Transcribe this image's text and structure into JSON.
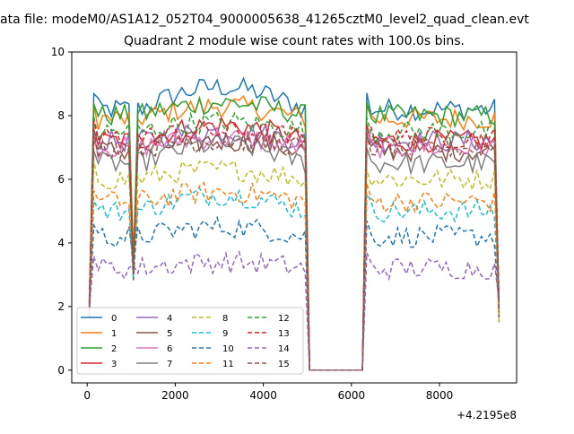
{
  "figure": {
    "suptitle": "ata file: modeM0/AS1A12_052T04_9000005638_41265cztM0_level2_quad_clean.evt",
    "offset_label": "+4.2195e8"
  },
  "chart_data": {
    "type": "line",
    "title": "Quadrant 2 module wise count rates with 100.0s bins.",
    "xlabel": "",
    "ylabel": "",
    "xlim": [
      -350,
      9750
    ],
    "ylim": [
      -0.4,
      10
    ],
    "x_ticks": [
      0,
      2000,
      4000,
      6000,
      8000
    ],
    "y_ticks": [
      0,
      2,
      4,
      6,
      8,
      10
    ],
    "grid": false,
    "legend_position": "lower-left",
    "legend_columns": 4,
    "x_offset": 421950000,
    "x_start": 50,
    "x_step": 100,
    "point_count": 94,
    "segments": [
      {
        "from_x": 50,
        "to_x": 950,
        "kind": "on"
      },
      {
        "from_x": 1150,
        "to_x": 4950,
        "kind": "on"
      },
      {
        "from_x": 5050,
        "to_x": 6250,
        "kind": "zero"
      },
      {
        "from_x": 6350,
        "to_x": 9350,
        "kind": "on"
      }
    ],
    "dip_points": [
      {
        "x": 1050
      }
    ],
    "series": [
      {
        "name": "0",
        "color": "#1f77b4",
        "dash": "solid",
        "base": 8.2,
        "trend": 0.7
      },
      {
        "name": "1",
        "color": "#ff7f0e",
        "dash": "solid",
        "base": 7.9,
        "trend": 0.4
      },
      {
        "name": "2",
        "color": "#2ca02c",
        "dash": "solid",
        "base": 8.0,
        "trend": 0.4
      },
      {
        "name": "3",
        "color": "#d62728",
        "dash": "solid",
        "base": 7.2,
        "trend": 0.5
      },
      {
        "name": "4",
        "color": "#9467bd",
        "dash": "solid",
        "base": 7.2,
        "trend": 0.3
      },
      {
        "name": "5",
        "color": "#8c564b",
        "dash": "solid",
        "base": 6.9,
        "trend": 0.3
      },
      {
        "name": "6",
        "color": "#e377c2",
        "dash": "solid",
        "base": 7.0,
        "trend": 0.3
      },
      {
        "name": "7",
        "color": "#7f7f7f",
        "dash": "solid",
        "base": 6.5,
        "trend": 0.6
      },
      {
        "name": "8",
        "color": "#bcbd22",
        "dash": "dashed",
        "base": 6.0,
        "trend": 0.3
      },
      {
        "name": "9",
        "color": "#17becf",
        "dash": "dashed",
        "base": 5.0,
        "trend": 0.5
      },
      {
        "name": "10",
        "color": "#1f77b4",
        "dash": "dashed",
        "base": 4.2,
        "trend": 0.3
      },
      {
        "name": "11",
        "color": "#ff7f0e",
        "dash": "dashed",
        "base": 5.3,
        "trend": 0.3
      },
      {
        "name": "12",
        "color": "#2ca02c",
        "dash": "dashed",
        "base": 7.5,
        "trend": 0.3
      },
      {
        "name": "13",
        "color": "#d62728",
        "dash": "dashed",
        "base": 7.3,
        "trend": 0.2
      },
      {
        "name": "14",
        "color": "#9467bd",
        "dash": "dashed",
        "base": 3.2,
        "trend": 0.2
      },
      {
        "name": "15",
        "color": "#8c564b",
        "dash": "dashed",
        "base": 7.0,
        "trend": 0.2
      }
    ]
  }
}
